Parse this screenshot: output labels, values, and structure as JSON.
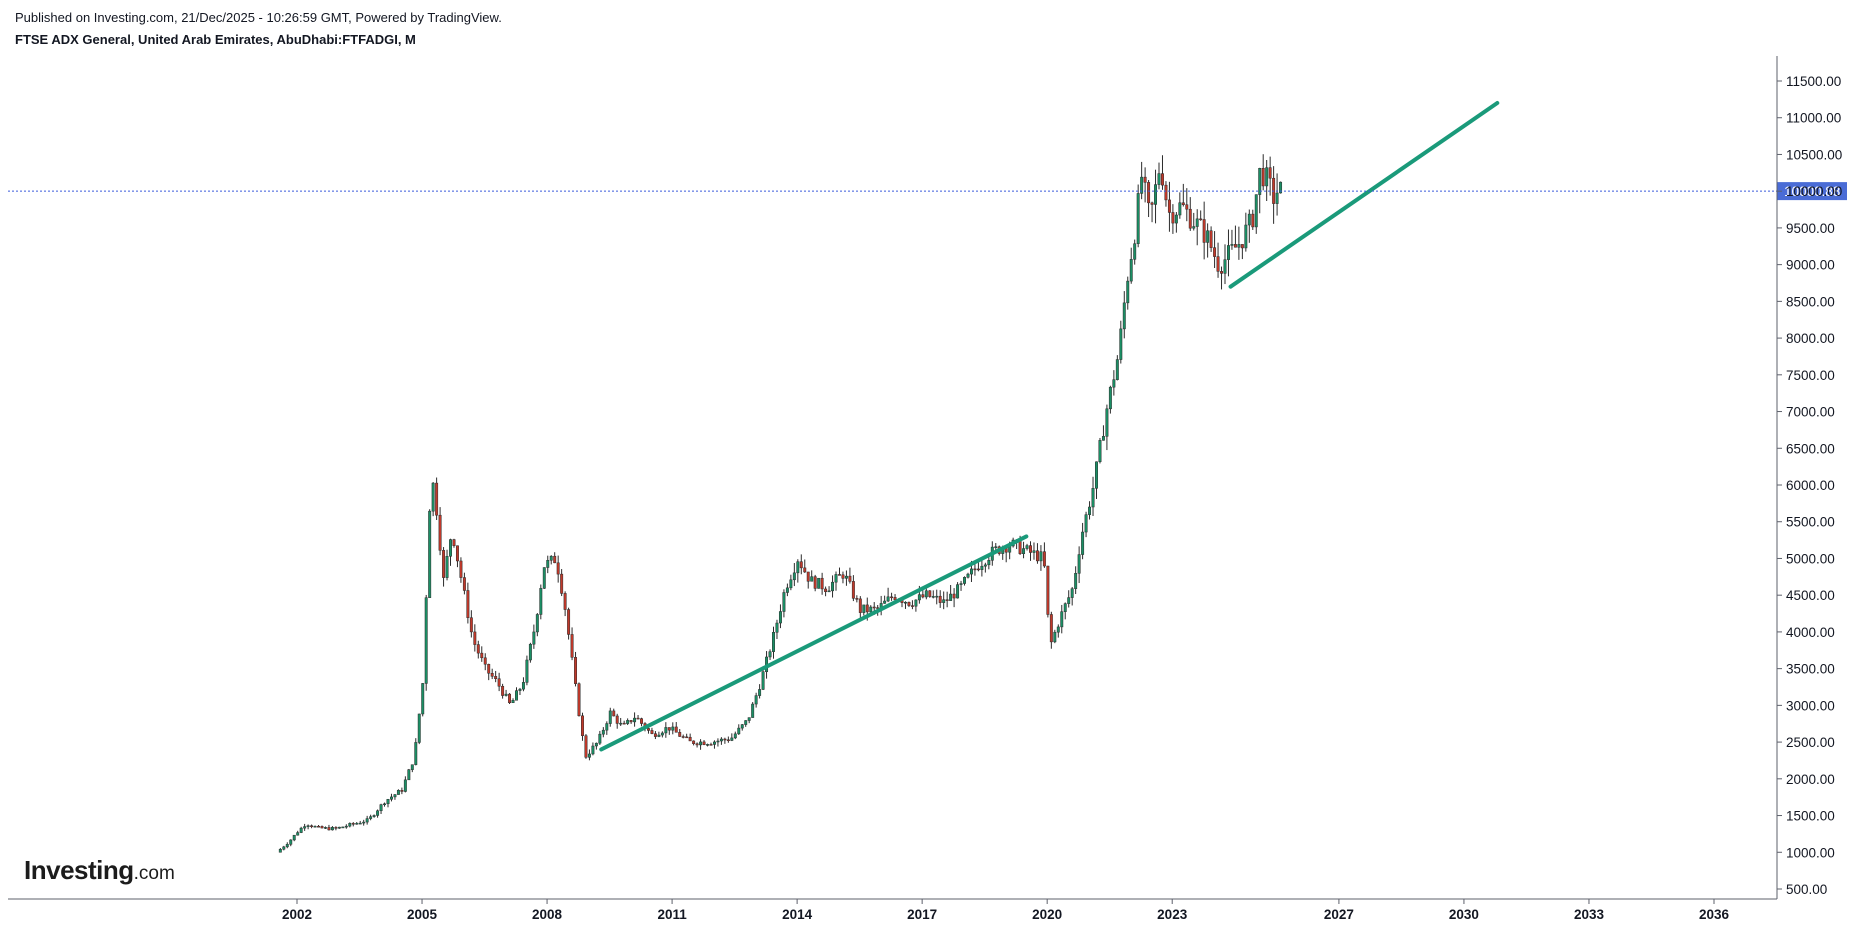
{
  "header": {
    "published": "Published on Investing.com, 21/Dec/2025 - 10:26:59 GMT, Powered by TradingView.",
    "title": "FTSE ADX General, United Arab Emirates, AbuDhabi:FTFADGI, M"
  },
  "logo": {
    "brand": "Investing",
    "suffix": ".com"
  },
  "colors": {
    "up": "#1b8f65",
    "down": "#c0392b",
    "trend": "#1a9a7a",
    "price_line": "#3b5bdb",
    "price_badge": "#4a6cd6"
  },
  "chart_data": {
    "type": "candlestick",
    "title": "FTSE ADX General, United Arab Emirates, AbuDhabi:FTFADGI, M",
    "interval": "M",
    "last_price": 10000.88,
    "last_price_label": "10000.88",
    "ylim": [
      500,
      11800
    ],
    "xlim": [
      2000.6,
      2037.2
    ],
    "y_ticks": [
      "500.00",
      "1000.00",
      "1500.00",
      "2000.00",
      "2500.00",
      "3000.00",
      "3500.00",
      "4000.00",
      "4500.00",
      "5000.00",
      "5500.00",
      "6000.00",
      "6500.00",
      "7000.00",
      "7500.00",
      "8000.00",
      "8500.00",
      "9000.00",
      "9500.00",
      "10000.00",
      "10500.00",
      "11000.00",
      "11500.00"
    ],
    "x_ticks": [
      "2002",
      "2005",
      "2008",
      "2011",
      "2014",
      "2017",
      "2020",
      "2023",
      "2027",
      "2030",
      "2033",
      "2036"
    ],
    "price_path": [
      [
        2001.6,
        1000
      ],
      [
        2001.9,
        1150
      ],
      [
        2002.1,
        1280
      ],
      [
        2002.3,
        1390
      ],
      [
        2002.6,
        1330
      ],
      [
        2003.0,
        1320
      ],
      [
        2003.4,
        1380
      ],
      [
        2003.8,
        1440
      ],
      [
        2004.2,
        1700
      ],
      [
        2004.6,
        1850
      ],
      [
        2004.9,
        2300
      ],
      [
        2005.1,
        3300
      ],
      [
        2005.3,
        6200
      ],
      [
        2005.45,
        5600
      ],
      [
        2005.6,
        4700
      ],
      [
        2005.8,
        5400
      ],
      [
        2006.0,
        4800
      ],
      [
        2006.3,
        3900
      ],
      [
        2006.6,
        3500
      ],
      [
        2006.9,
        3300
      ],
      [
        2007.2,
        3000
      ],
      [
        2007.5,
        3300
      ],
      [
        2007.8,
        4100
      ],
      [
        2008.0,
        4900
      ],
      [
        2008.3,
        5000
      ],
      [
        2008.5,
        4400
      ],
      [
        2008.8,
        3100
      ],
      [
        2009.0,
        2300
      ],
      [
        2009.3,
        2500
      ],
      [
        2009.6,
        2900
      ],
      [
        2009.9,
        2700
      ],
      [
        2010.2,
        2850
      ],
      [
        2010.6,
        2600
      ],
      [
        2011.0,
        2700
      ],
      [
        2011.5,
        2500
      ],
      [
        2012.0,
        2500
      ],
      [
        2012.5,
        2550
      ],
      [
        2012.9,
        2800
      ],
      [
        2013.2,
        3300
      ],
      [
        2013.5,
        3900
      ],
      [
        2013.8,
        4600
      ],
      [
        2014.1,
        5000
      ],
      [
        2014.4,
        4700
      ],
      [
        2014.8,
        4600
      ],
      [
        2015.2,
        4800
      ],
      [
        2015.6,
        4300
      ],
      [
        2016.0,
        4300
      ],
      [
        2016.4,
        4500
      ],
      [
        2016.8,
        4400
      ],
      [
        2017.2,
        4500
      ],
      [
        2017.6,
        4400
      ],
      [
        2018.0,
        4600
      ],
      [
        2018.4,
        4900
      ],
      [
        2018.8,
        5100
      ],
      [
        2019.2,
        5200
      ],
      [
        2019.6,
        5100
      ],
      [
        2020.0,
        5000
      ],
      [
        2020.15,
        3800
      ],
      [
        2020.4,
        4200
      ],
      [
        2020.7,
        4600
      ],
      [
        2020.9,
        5300
      ],
      [
        2021.2,
        6000
      ],
      [
        2021.5,
        7000
      ],
      [
        2021.8,
        7800
      ],
      [
        2022.0,
        8800
      ],
      [
        2022.2,
        9500
      ],
      [
        2022.35,
        10200
      ],
      [
        2022.55,
        9600
      ],
      [
        2022.8,
        10400
      ],
      [
        2023.0,
        9700
      ],
      [
        2023.3,
        9800
      ],
      [
        2023.6,
        9600
      ],
      [
        2023.9,
        9400
      ],
      [
        2024.2,
        9000
      ],
      [
        2024.4,
        9100
      ],
      [
        2024.7,
        9300
      ],
      [
        2025.0,
        9600
      ],
      [
        2025.2,
        10300
      ],
      [
        2025.4,
        10100
      ],
      [
        2025.5,
        9900
      ],
      [
        2025.6,
        10000.88
      ]
    ],
    "trendlines": [
      {
        "start": [
          2009.3,
          2400
        ],
        "end": [
          2019.5,
          5300
        ]
      },
      {
        "start": [
          2024.4,
          8700
        ],
        "end": [
          2030.8,
          11200
        ]
      }
    ]
  }
}
